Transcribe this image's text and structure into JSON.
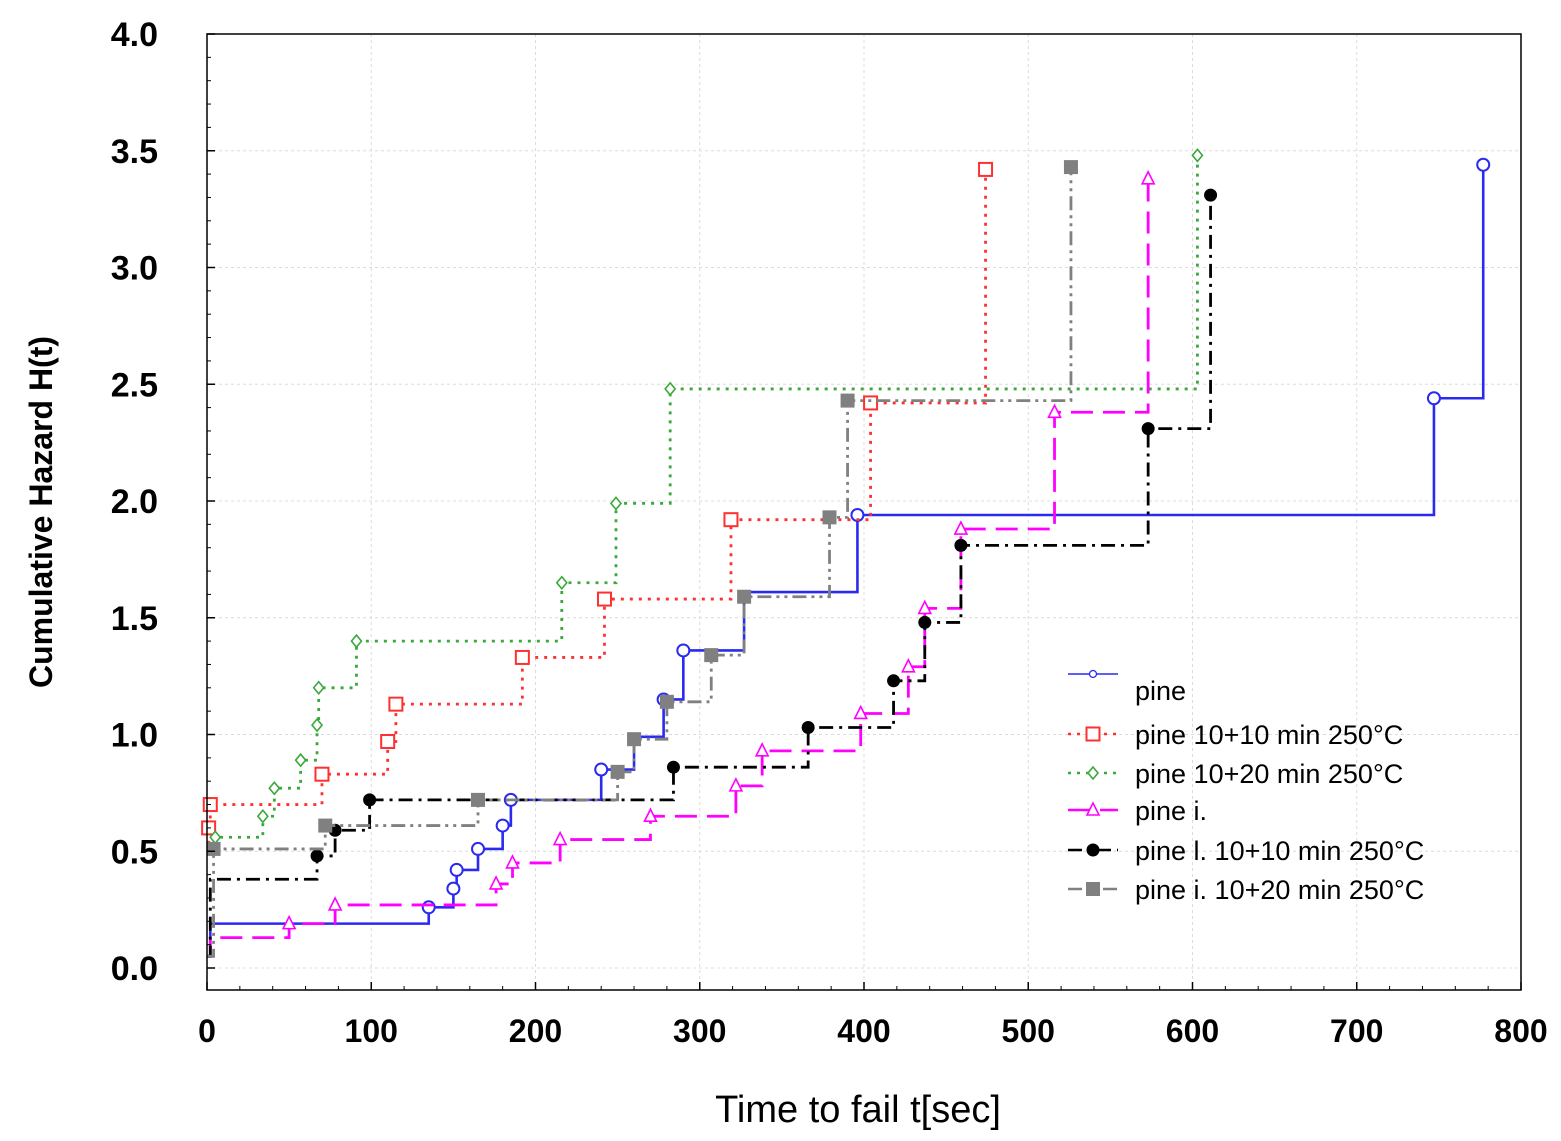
{
  "chart_data": {
    "type": "line",
    "title": "",
    "xlabel": "Time to fail t[sec]",
    "ylabel": "Cumulative Hazard H(t)",
    "xlim": [
      0,
      800
    ],
    "ylim": [
      0,
      4
    ],
    "x_ticks": [
      "0",
      "100",
      "200",
      "300",
      "400",
      "500",
      "600",
      "700",
      "800"
    ],
    "y_ticks": [
      "0.0",
      "0.5",
      "1.0",
      "1.5",
      "2.0",
      "2.5",
      "3.0",
      "3.5",
      "4.0"
    ],
    "grid": true,
    "legend_position": "bottom-right",
    "series": [
      {
        "name": "pine",
        "color": "#2a2af0",
        "style": "solid",
        "marker": "circle-open",
        "step_x": [
          0,
          2,
          135,
          150,
          152,
          165,
          180,
          185,
          240,
          260,
          278,
          290,
          327,
          396,
          747,
          777
        ],
        "step_y": [
          0.05,
          0.19,
          0.26,
          0.34,
          0.42,
          0.51,
          0.61,
          0.72,
          0.85,
          0.99,
          1.15,
          1.36,
          1.61,
          1.94,
          2.44,
          3.44
        ],
        "marker_x": [
          135,
          150,
          152,
          165,
          180,
          185,
          240,
          278,
          290,
          396,
          747,
          777
        ],
        "marker_y": [
          0.26,
          0.34,
          0.42,
          0.51,
          0.61,
          0.72,
          0.85,
          1.15,
          1.36,
          1.94,
          2.44,
          3.44
        ]
      },
      {
        "name": "pine 10+10 min 250°C",
        "color": "#ff3030",
        "style": "dotted",
        "marker": "square-open",
        "step_x": [
          0,
          1,
          2,
          70,
          110,
          115,
          192,
          242,
          319,
          404,
          474
        ],
        "step_y": [
          0.5,
          0.6,
          0.7,
          0.83,
          0.97,
          1.13,
          1.33,
          1.58,
          1.92,
          2.42,
          3.42
        ],
        "marker_x": [
          1,
          2,
          70,
          110,
          115,
          192,
          242,
          319,
          404,
          474
        ],
        "marker_y": [
          0.6,
          0.7,
          0.83,
          0.97,
          1.13,
          1.33,
          1.58,
          1.92,
          2.42,
          3.42
        ]
      },
      {
        "name": "pine 10+20 min 250°C",
        "color": "#3aa83a",
        "style": "dotted",
        "marker": "diamond-open",
        "step_x": [
          0,
          5,
          34,
          41,
          57,
          67,
          68,
          91,
          216,
          249,
          282,
          603
        ],
        "step_y": [
          0.5,
          0.56,
          0.65,
          0.77,
          0.89,
          1.04,
          1.2,
          1.4,
          1.65,
          1.99,
          2.48,
          3.48
        ],
        "marker_x": [
          5,
          34,
          41,
          57,
          67,
          68,
          91,
          216,
          249,
          282,
          603
        ],
        "marker_y": [
          0.56,
          0.65,
          0.77,
          0.89,
          1.04,
          1.2,
          1.4,
          1.65,
          1.99,
          2.48,
          3.48
        ]
      },
      {
        "name": "pine i.",
        "color": "#ff00ff",
        "style": "dashed",
        "marker": "triangle-open",
        "step_x": [
          0,
          2,
          50,
          78,
          176,
          186,
          215,
          270,
          322,
          338,
          398,
          427,
          437,
          459,
          516,
          573
        ],
        "step_y": [
          0.05,
          0.13,
          0.19,
          0.27,
          0.36,
          0.45,
          0.55,
          0.65,
          0.78,
          0.93,
          1.09,
          1.29,
          1.54,
          1.88,
          2.38,
          3.38
        ],
        "marker_x": [
          50,
          78,
          176,
          186,
          215,
          270,
          322,
          338,
          398,
          427,
          437,
          459,
          516,
          573
        ],
        "marker_y": [
          0.19,
          0.27,
          0.36,
          0.45,
          0.55,
          0.65,
          0.78,
          0.93,
          1.09,
          1.29,
          1.54,
          1.88,
          2.38,
          3.38
        ]
      },
      {
        "name": "pine l. 10+10 min 250°C",
        "color": "#000000",
        "style": "dashdot",
        "marker": "circle-filled",
        "step_x": [
          0,
          2,
          67,
          78,
          99,
          284,
          366,
          418,
          437,
          459,
          573,
          611
        ],
        "step_y": [
          0.05,
          0.38,
          0.48,
          0.59,
          0.72,
          0.86,
          1.03,
          1.23,
          1.48,
          1.81,
          2.31,
          3.31
        ],
        "marker_x": [
          67,
          78,
          99,
          284,
          366,
          418,
          437,
          459,
          573,
          611
        ],
        "marker_y": [
          0.48,
          0.59,
          0.72,
          0.86,
          1.03,
          1.23,
          1.48,
          1.81,
          2.31,
          3.31
        ]
      },
      {
        "name": "pine i. 10+20 min 250°C",
        "color": "#808080",
        "style": "dashdotdot",
        "marker": "square-filled",
        "step_x": [
          0,
          4,
          72,
          165,
          250,
          260,
          280,
          307,
          327,
          379,
          390,
          526
        ],
        "step_y": [
          0.05,
          0.51,
          0.61,
          0.72,
          0.84,
          0.98,
          1.14,
          1.34,
          1.59,
          1.93,
          2.43,
          3.43
        ],
        "marker_x": [
          4,
          72,
          165,
          250,
          260,
          280,
          307,
          327,
          379,
          390,
          526
        ],
        "marker_y": [
          0.51,
          0.61,
          0.72,
          0.84,
          0.98,
          1.14,
          1.34,
          1.59,
          1.93,
          2.43,
          3.43
        ]
      }
    ]
  }
}
